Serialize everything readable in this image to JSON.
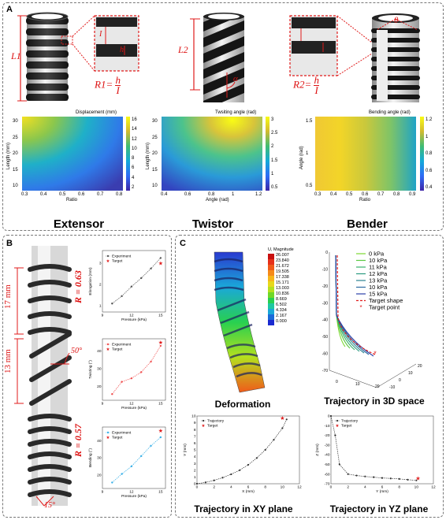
{
  "panels": {
    "a": "A",
    "b": "B",
    "c": "C"
  },
  "colors": {
    "accent_red": "#e01b1b",
    "panel_border": "#777777"
  },
  "panel_a": {
    "titles": [
      "Extensor",
      "Twistor",
      "Bender"
    ],
    "labels": {
      "L1": "L1",
      "L2": "L2",
      "h": "h",
      "I": "I",
      "alpha": "α",
      "theta": "θ",
      "r1_lhs": "R1=",
      "r2_lhs": "R2=",
      "frac_num": "h",
      "frac_den": "I"
    },
    "heatmaps": [
      {
        "title": "Displacement (mm)",
        "xlabel": "Ratio",
        "ylabel": "Length (mm)",
        "xticks": [
          "0.3",
          "0.4",
          "0.5",
          "0.6",
          "0.7",
          "0.8"
        ],
        "yticks": [
          "10",
          "15",
          "20",
          "25",
          "30"
        ],
        "cticks": [
          "2",
          "4",
          "6",
          "8",
          "10",
          "12",
          "14",
          "16"
        ]
      },
      {
        "title": "Twsiting angle (rad)",
        "xlabel": "Angle (rad)",
        "ylabel": "Length (mm)",
        "xticks": [
          "0.4",
          "0.6",
          "0.8",
          "1",
          "1.2"
        ],
        "yticks": [
          "10",
          "15",
          "20",
          "25",
          "30"
        ],
        "cticks": [
          "0.5",
          "1",
          "1.5",
          "2",
          "2.5",
          "3"
        ]
      },
      {
        "title": "Bending angle (rad)",
        "xlabel": "Ratio",
        "ylabel": "Angle (rad)",
        "xticks": [
          "0.3",
          "0.4",
          "0.5",
          "0.6",
          "0.7",
          "0.8",
          "0.9"
        ],
        "yticks": [
          "0.5",
          "1",
          "1.5"
        ],
        "cticks": [
          "0.4",
          "0.6",
          "0.8",
          "1",
          "1.2"
        ]
      }
    ]
  },
  "panel_b": {
    "annotations": {
      "dim1": "17 mm",
      "dim2": "13 mm",
      "r1": "R = 0.63",
      "r2": "R = 0.57",
      "angle1": "50°",
      "angle2": "15°"
    }
  },
  "chart_data": [
    {
      "type": "line",
      "ylabel": "Elongation (mm)",
      "xlabel": "Pressure (kPa)",
      "xticks": [
        "9",
        "12",
        "15"
      ],
      "yticks": [
        "1",
        "2",
        "3"
      ],
      "series": [
        {
          "name": "Experiment",
          "x": [
            10,
            11,
            12,
            13,
            14,
            15
          ],
          "values": [
            1.1,
            1.45,
            1.9,
            2.3,
            2.75,
            3.25
          ]
        },
        {
          "name": "Target",
          "x": [
            15
          ],
          "values": [
            3.0
          ]
        }
      ],
      "xlim": [
        9,
        15.5
      ],
      "ylim": [
        0.7,
        3.6
      ]
    },
    {
      "type": "line",
      "ylabel": "Twisting (°)",
      "xlabel": "Pressure (kPa)",
      "xticks": [
        "9",
        "12",
        "15"
      ],
      "yticks": [
        "20",
        "30",
        "40"
      ],
      "series": [
        {
          "name": "Experiment",
          "x": [
            10,
            11,
            12,
            13,
            14,
            15
          ],
          "values": [
            15.5,
            22.5,
            24.5,
            28,
            34,
            43
          ]
        },
        {
          "name": "Target",
          "x": [
            15
          ],
          "values": [
            45
          ]
        }
      ],
      "xlim": [
        9,
        15.5
      ],
      "ylim": [
        12,
        47
      ]
    },
    {
      "type": "line",
      "ylabel": "Bending (°)",
      "xlabel": "Pressure (kPa)",
      "xticks": [
        "9",
        "12",
        "15"
      ],
      "yticks": [
        "20",
        "30",
        "40"
      ],
      "series": [
        {
          "name": "Experiment",
          "x": [
            10,
            11,
            12,
            13,
            14,
            15
          ],
          "values": [
            15.5,
            20.5,
            25,
            31,
            37,
            42
          ]
        },
        {
          "name": "Target",
          "x": [
            15
          ],
          "values": [
            46
          ]
        }
      ],
      "xlim": [
        9,
        15.5
      ],
      "ylim": [
        12,
        48
      ]
    },
    {
      "type": "line",
      "title": "Trajectory in XY plane",
      "xlabel": "X (mm)",
      "ylabel": "Y (mm)",
      "xticks": [
        "0",
        "2",
        "4",
        "6",
        "8",
        "10",
        "12"
      ],
      "yticks": [
        "0",
        "1",
        "2",
        "3",
        "4",
        "5",
        "6",
        "7",
        "8",
        "9",
        "10"
      ],
      "series": [
        {
          "name": "Trajectory",
          "x": [
            0,
            1,
            2,
            3,
            4,
            5,
            6,
            7,
            8,
            9,
            10,
            10.5
          ],
          "values": [
            0,
            0.2,
            0.5,
            0.9,
            1.4,
            2,
            2.8,
            3.8,
            5,
            6.5,
            8.2,
            9.5
          ]
        },
        {
          "name": "Target",
          "x": [
            10
          ],
          "values": [
            9.7
          ]
        }
      ],
      "xlim": [
        0,
        12
      ],
      "ylim": [
        0,
        10
      ]
    },
    {
      "type": "line",
      "title": "Trajectory in YZ plane",
      "xlabel": "Y (mm)",
      "ylabel": "Z (mm)",
      "xticks": [
        "0",
        "2",
        "4",
        "6",
        "8",
        "10",
        "12"
      ],
      "yticks": [
        "-70",
        "-60",
        "-50",
        "-40",
        "-30",
        "-20",
        "-10",
        "0"
      ],
      "series": [
        {
          "name": "Trajectory",
          "x": [
            0,
            0.5,
            1,
            2,
            3,
            4,
            5,
            6,
            7,
            8,
            9,
            10
          ],
          "values": [
            0,
            -20,
            -50,
            -60,
            -61.5,
            -62.5,
            -63.2,
            -64,
            -64.5,
            -65,
            -65.8,
            -66.5
          ]
        },
        {
          "name": "Target",
          "x": [
            10.2
          ],
          "values": [
            -64.5
          ]
        }
      ],
      "xlim": [
        0,
        12
      ],
      "ylim": [
        -70,
        0
      ]
    }
  ],
  "panel_c": {
    "fem": {
      "legend_title": "U, Magnitude",
      "values": [
        "26.007",
        "23.840",
        "21.672",
        "19.505",
        "17.338",
        "15.171",
        "13.003",
        "10.836",
        "8.669",
        "6.502",
        "4.334",
        "2.167",
        "0.000"
      ],
      "colors": [
        "#c81010",
        "#e6301a",
        "#f05a1a",
        "#f58a1a",
        "#f6b61a",
        "#e7d81c",
        "#b5e01e",
        "#6fd828",
        "#28d050",
        "#1ec8a0",
        "#1aa8d8",
        "#1a6ad8",
        "#1a2ad0"
      ]
    },
    "traj3d": {
      "legend": [
        {
          "label": "0 kPa",
          "color": "#7ad830"
        },
        {
          "label": "10 kPa",
          "color": "#5ac840"
        },
        {
          "label": "11 kPa",
          "color": "#38b06a"
        },
        {
          "label": "12 kPa",
          "color": "#2a9a80"
        },
        {
          "label": "13 kPa",
          "color": "#2a8290"
        },
        {
          "label": "10 kPa",
          "color": "#2a6aa0"
        },
        {
          "label": "15 kPa",
          "color": "#2a40a8"
        },
        {
          "label": "Target shape",
          "color": "#e01b1b"
        },
        {
          "label": "Target point",
          "color": "#e01b1b"
        }
      ],
      "zticks": [
        "0",
        "-10",
        "-20",
        "-30",
        "-40",
        "-50",
        "-60",
        "-70"
      ],
      "xticks": [
        "0",
        "10",
        "20"
      ],
      "yticks": [
        "20",
        "10",
        "0",
        "-10"
      ]
    },
    "captions": {
      "deformation": "Deformation",
      "traj3d": "Trajectory in 3D space",
      "xy": "Trajectory in XY plane",
      "yz": "Trajectory in YZ plane"
    }
  }
}
